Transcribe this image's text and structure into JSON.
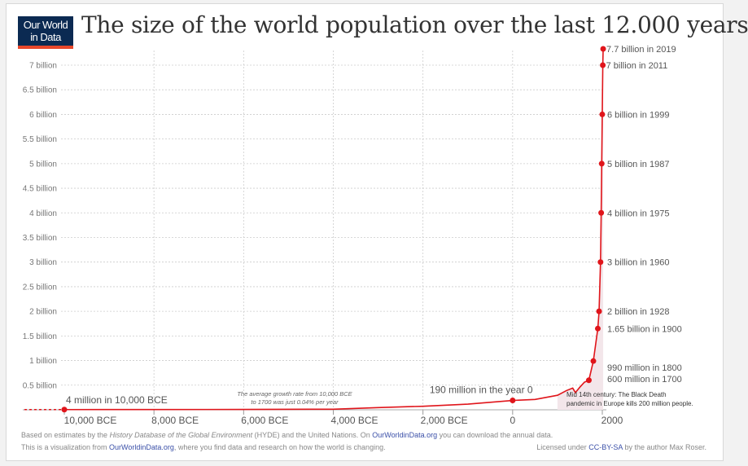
{
  "logo": {
    "line1": "Our World",
    "line2": "in Data"
  },
  "title": "The size of the world population over the last 12.000 years",
  "colors": {
    "line": "#e0151b",
    "logo_bg": "#0b2a52",
    "logo_stripe": "#e8472a",
    "grid": "#cccccc",
    "shade": "#f3e6ea"
  },
  "chart_data": {
    "type": "line",
    "title": "The size of the world population over the last 12.000 years",
    "xlabel": "",
    "ylabel": "",
    "xlim": [
      -10000,
      2000
    ],
    "ylim": [
      0,
      7
    ],
    "grid": true,
    "x_ticks": [
      {
        "v": -10000,
        "label": "10,000 BCE"
      },
      {
        "v": -8000,
        "label": "8,000 BCE"
      },
      {
        "v": -6000,
        "label": "6,000 BCE"
      },
      {
        "v": -4000,
        "label": "4,000 BCE"
      },
      {
        "v": -2000,
        "label": "2,000 BCE"
      },
      {
        "v": 0,
        "label": "0"
      },
      {
        "v": 2000,
        "label": "2000"
      }
    ],
    "y_ticks": [
      {
        "v": 0.5,
        "label": "0.5 billion"
      },
      {
        "v": 1,
        "label": "1 billion"
      },
      {
        "v": 1.5,
        "label": "1.5 billion"
      },
      {
        "v": 2,
        "label": "2 billion"
      },
      {
        "v": 2.5,
        "label": "2.5 billion"
      },
      {
        "v": 3,
        "label": "3 billion"
      },
      {
        "v": 3.5,
        "label": "3.5 billion"
      },
      {
        "v": 4,
        "label": "4 billion"
      },
      {
        "v": 4.5,
        "label": "4.5 billion"
      },
      {
        "v": 5,
        "label": "5 billion"
      },
      {
        "v": 5.5,
        "label": "5.5 billion"
      },
      {
        "v": 6,
        "label": "6 billion"
      },
      {
        "v": 6.5,
        "label": "6.5 billion"
      },
      {
        "v": 7,
        "label": "7 billion"
      }
    ],
    "series": [
      {
        "x": [
          -10000,
          -8000,
          -6000,
          -4000,
          -3000,
          -2000,
          -1000,
          0,
          500,
          1000,
          1200,
          1340,
          1400,
          1500,
          1600,
          1700,
          1800,
          1900,
          1928,
          1960,
          1975,
          1987,
          1999,
          2011,
          2019
        ],
        "y": [
          0.004,
          0.005,
          0.007,
          0.012,
          0.045,
          0.072,
          0.115,
          0.19,
          0.21,
          0.295,
          0.39,
          0.44,
          0.35,
          0.46,
          0.56,
          0.6,
          0.99,
          1.65,
          2,
          3,
          4,
          5,
          6,
          7,
          7.7
        ]
      }
    ],
    "labeled_points": [
      {
        "x": -10000,
        "y": 0.004,
        "label": "4 million in 10,000 BCE"
      },
      {
        "x": 0,
        "y": 0.19,
        "label": "190 million in the year 0"
      },
      {
        "x": 1700,
        "y": 0.6,
        "label": "600 million in 1700"
      },
      {
        "x": 1800,
        "y": 0.99,
        "label": "990 million in 1800"
      },
      {
        "x": 1900,
        "y": 1.65,
        "label": "1.65 billion in 1900"
      },
      {
        "x": 1928,
        "y": 2,
        "label": "2 billion in 1928"
      },
      {
        "x": 1960,
        "y": 3,
        "label": "3 billion in 1960"
      },
      {
        "x": 1975,
        "y": 4,
        "label": "4 billion in 1975"
      },
      {
        "x": 1987,
        "y": 5,
        "label": "5 billion in 1987"
      },
      {
        "x": 1999,
        "y": 6,
        "label": "6 billion in 1999"
      },
      {
        "x": 2011,
        "y": 7,
        "label": "7 billion in 2011"
      },
      {
        "x": 2019,
        "y": 7.7,
        "label": "7.7 billion in 2019"
      }
    ],
    "annotations": {
      "growth_line1": "The average growth rate from 10,000 BCE",
      "growth_line2": "to 1700 was just  0.04% per year",
      "black_death_line1": "Mid 14th century: The Black Death",
      "black_death_line2": "pandemic in Europe kills 200 million people."
    }
  },
  "footer": {
    "line1_a": "Based on estimates by the ",
    "line1_italic": "History Database of the Global Environment",
    "line1_b": " (HYDE) and the United Nations. On ",
    "line1_link": "OurWorldinData.org",
    "line1_c": " you can download the annual data.",
    "line2_a": "This is a visualization from ",
    "line2_link": "OurWorldinData.org",
    "line2_b": ", where you find data and research on how the world is changing.",
    "license_a": "Licensed under ",
    "license_link": "CC-BY-SA",
    "license_b": " by the author Max Roser."
  }
}
